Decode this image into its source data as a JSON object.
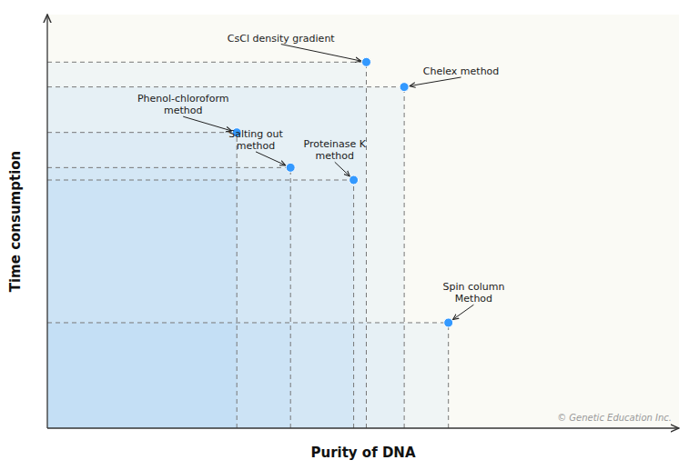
{
  "chart_data": {
    "type": "scatter",
    "xlabel": "Purity of DNA",
    "ylabel": "Time consumption",
    "x": [
      5.05,
      5.65,
      3.0,
      3.85,
      4.85,
      6.35
    ],
    "values": [
      8.85,
      8.25,
      7.15,
      6.3,
      6.0,
      2.55
    ],
    "color": "#3399ff",
    "xlim": [
      0,
      10
    ],
    "ylim": [
      0,
      10
    ],
    "xticks": [],
    "yticks": [],
    "tick_labels": false,
    "grid": false,
    "annotations": [
      {
        "text": "CsCl density gradient",
        "x": 3.7,
        "y": 9.35
      },
      {
        "text": "Chelex method",
        "x": 6.55,
        "y": 8.55
      },
      {
        "text": "Phenol-chloroform\nmethod",
        "x": 2.15,
        "y": 7.6
      },
      {
        "text": "Salting out\nmethod",
        "x": 3.3,
        "y": 6.75
      },
      {
        "text": "Proteinase K\nmethod",
        "x": 4.55,
        "y": 6.5
      },
      {
        "text": "Spin column\nMethod",
        "x": 6.75,
        "y": 3.05
      }
    ],
    "watermark": "© Genetic Education Inc."
  }
}
